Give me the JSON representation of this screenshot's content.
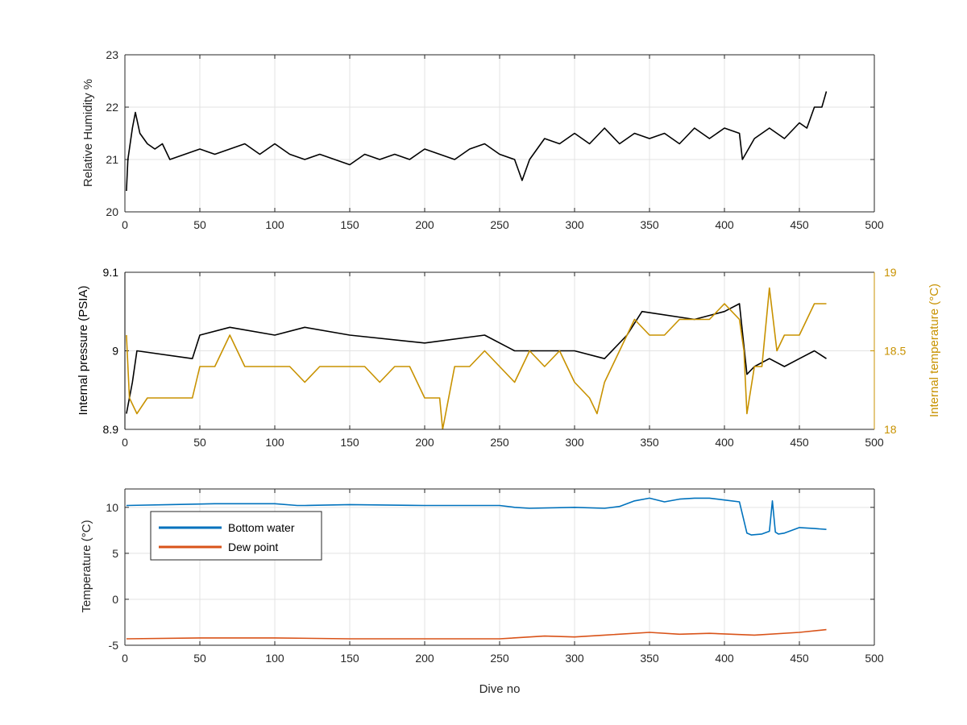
{
  "colors": {
    "black": "#000000",
    "blue": "#0072BD",
    "orange": "#D95319",
    "gold": "#C89200",
    "grid": "#e3e3e3",
    "axis": "#262626"
  },
  "chart_data": [
    {
      "type": "line",
      "ylabel": "Relative Humidity %",
      "xlim": [
        0,
        500
      ],
      "ylim": [
        20,
        23
      ],
      "xticks": [
        "0",
        "50",
        "100",
        "150",
        "200",
        "250",
        "300",
        "350",
        "400",
        "450",
        "500"
      ],
      "yticks": [
        "20",
        "21",
        "22",
        "23"
      ],
      "grid": true,
      "series": [
        {
          "color": "#000000",
          "x": [
            1,
            2,
            5,
            7,
            10,
            15,
            20,
            25,
            30,
            40,
            50,
            60,
            70,
            80,
            90,
            100,
            110,
            120,
            130,
            140,
            150,
            160,
            170,
            180,
            190,
            200,
            210,
            220,
            230,
            240,
            250,
            260,
            265,
            270,
            280,
            290,
            300,
            310,
            320,
            330,
            340,
            350,
            360,
            370,
            380,
            390,
            400,
            410,
            412,
            420,
            430,
            440,
            450,
            455,
            460,
            465,
            468
          ],
          "values": [
            20.4,
            21.0,
            21.6,
            21.9,
            21.5,
            21.3,
            21.2,
            21.3,
            21.0,
            21.1,
            21.2,
            21.1,
            21.2,
            21.3,
            21.1,
            21.3,
            21.1,
            21.0,
            21.1,
            21.0,
            20.9,
            21.1,
            21.0,
            21.1,
            21.0,
            21.2,
            21.1,
            21.0,
            21.2,
            21.3,
            21.1,
            21.0,
            20.6,
            21.0,
            21.4,
            21.3,
            21.5,
            21.3,
            21.6,
            21.3,
            21.5,
            21.4,
            21.5,
            21.3,
            21.6,
            21.4,
            21.6,
            21.5,
            21.0,
            21.4,
            21.6,
            21.4,
            21.7,
            21.6,
            22.0,
            22.0,
            22.3
          ]
        }
      ]
    },
    {
      "type": "line",
      "ylabel": "Internal pressure (PSIA)",
      "y2label": "Internal temperature (°C)",
      "xlim": [
        0,
        500
      ],
      "ylim": [
        8.9,
        9.1
      ],
      "y2lim": [
        18,
        19
      ],
      "xticks": [
        "0",
        "50",
        "100",
        "150",
        "200",
        "250",
        "300",
        "350",
        "400",
        "450",
        "500"
      ],
      "yticks": [
        "8.9",
        "9",
        "9.1"
      ],
      "y2ticks": [
        "18",
        "18.5",
        "19"
      ],
      "grid": true,
      "series": [
        {
          "axis": "left",
          "color": "#000000",
          "x": [
            1,
            5,
            8,
            45,
            50,
            70,
            100,
            120,
            150,
            200,
            240,
            260,
            300,
            320,
            335,
            345,
            380,
            400,
            410,
            415,
            420,
            430,
            440,
            450,
            460,
            468
          ],
          "values": [
            8.92,
            8.96,
            9.0,
            8.99,
            9.02,
            9.03,
            9.02,
            9.03,
            9.02,
            9.01,
            9.02,
            9.0,
            9.0,
            8.99,
            9.02,
            9.05,
            9.04,
            9.05,
            9.06,
            8.97,
            8.98,
            8.99,
            8.98,
            8.99,
            9.0,
            8.99
          ]
        },
        {
          "axis": "right",
          "color": "#C89200",
          "x": [
            1,
            3,
            8,
            15,
            25,
            35,
            45,
            50,
            60,
            70,
            80,
            90,
            100,
            110,
            120,
            130,
            140,
            150,
            160,
            170,
            180,
            190,
            200,
            210,
            212,
            220,
            230,
            240,
            250,
            260,
            270,
            280,
            290,
            300,
            310,
            315,
            320,
            330,
            340,
            350,
            360,
            370,
            380,
            390,
            400,
            410,
            413,
            415,
            420,
            425,
            430,
            435,
            440,
            450,
            455,
            460,
            465,
            468
          ],
          "values": [
            18.6,
            18.2,
            18.1,
            18.2,
            18.2,
            18.2,
            18.2,
            18.4,
            18.4,
            18.6,
            18.4,
            18.4,
            18.4,
            18.4,
            18.3,
            18.4,
            18.4,
            18.4,
            18.4,
            18.3,
            18.4,
            18.4,
            18.2,
            18.2,
            18.0,
            18.4,
            18.4,
            18.5,
            18.4,
            18.3,
            18.5,
            18.4,
            18.5,
            18.3,
            18.2,
            18.1,
            18.3,
            18.5,
            18.7,
            18.6,
            18.6,
            18.7,
            18.7,
            18.7,
            18.8,
            18.7,
            18.5,
            18.1,
            18.4,
            18.4,
            18.9,
            18.5,
            18.6,
            18.6,
            18.7,
            18.8,
            18.8,
            18.8
          ]
        }
      ]
    },
    {
      "type": "line",
      "ylabel": "Temperature (°C)",
      "xlabel": "Dive no",
      "xlim": [
        0,
        500
      ],
      "ylim": [
        -5,
        12
      ],
      "xticks": [
        "0",
        "50",
        "100",
        "150",
        "200",
        "250",
        "300",
        "350",
        "400",
        "450",
        "500"
      ],
      "yticks": [
        "-5",
        "0",
        "5",
        "10"
      ],
      "grid": true,
      "legend": "top-left",
      "series": [
        {
          "name": "Bottom water",
          "color": "#0072BD",
          "x": [
            1,
            30,
            60,
            100,
            115,
            120,
            150,
            200,
            250,
            260,
            270,
            300,
            320,
            330,
            340,
            350,
            360,
            370,
            380,
            390,
            400,
            410,
            415,
            418,
            425,
            430,
            432,
            434,
            436,
            440,
            450,
            460,
            468
          ],
          "values": [
            10.2,
            10.3,
            10.4,
            10.4,
            10.2,
            10.2,
            10.3,
            10.2,
            10.2,
            10.0,
            9.9,
            10.0,
            9.9,
            10.1,
            10.7,
            11.0,
            10.6,
            10.9,
            11.0,
            11.0,
            10.8,
            10.6,
            7.2,
            7.0,
            7.1,
            7.4,
            10.7,
            7.3,
            7.1,
            7.2,
            7.8,
            7.7,
            7.6
          ]
        },
        {
          "name": "Dew point",
          "color": "#D95319",
          "x": [
            1,
            50,
            100,
            150,
            200,
            250,
            280,
            300,
            320,
            350,
            370,
            390,
            420,
            450,
            468
          ],
          "values": [
            -4.3,
            -4.2,
            -4.2,
            -4.3,
            -4.3,
            -4.3,
            -4.0,
            -4.1,
            -3.9,
            -3.6,
            -3.8,
            -3.7,
            -3.9,
            -3.6,
            -3.3
          ]
        }
      ]
    }
  ]
}
